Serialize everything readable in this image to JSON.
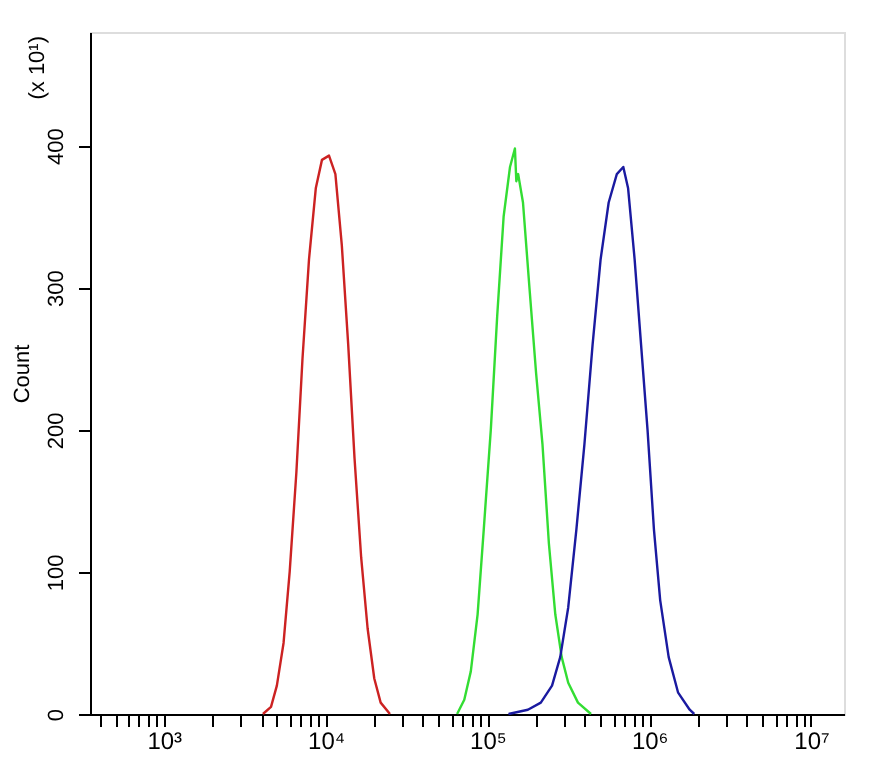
{
  "chart_data": {
    "type": "line",
    "ylabel": "Count",
    "annotations": [
      "(x 10¹)"
    ],
    "xlim": [
      350,
      16000000
    ],
    "ylim": [
      0,
      480
    ],
    "log": "x",
    "grid": false,
    "legend": false,
    "marker": "none",
    "line_style": "solid",
    "yticks": [
      0,
      100,
      200,
      300,
      400
    ],
    "xticks": [
      {
        "value": 400,
        "label": null
      },
      {
        "value": 500,
        "label": null
      },
      {
        "value": 600,
        "label": null
      },
      {
        "value": 700,
        "label": null
      },
      {
        "value": 800,
        "label": null
      },
      {
        "value": 900,
        "label": null
      },
      {
        "value": 1000,
        "label": "10³"
      },
      {
        "value": 2000,
        "label": null
      },
      {
        "value": 3000,
        "label": null
      },
      {
        "value": 4000,
        "label": null
      },
      {
        "value": 5000,
        "label": null
      },
      {
        "value": 6000,
        "label": null
      },
      {
        "value": 7000,
        "label": null
      },
      {
        "value": 8000,
        "label": null
      },
      {
        "value": 9000,
        "label": null
      },
      {
        "value": 10000,
        "label": "10⁴"
      },
      {
        "value": 20000,
        "label": null
      },
      {
        "value": 30000,
        "label": null
      },
      {
        "value": 40000,
        "label": null
      },
      {
        "value": 50000,
        "label": null
      },
      {
        "value": 60000,
        "label": null
      },
      {
        "value": 70000,
        "label": null
      },
      {
        "value": 80000,
        "label": null
      },
      {
        "value": 90000,
        "label": null
      },
      {
        "value": 100000,
        "label": "10⁵"
      },
      {
        "value": 200000,
        "label": null
      },
      {
        "value": 300000,
        "label": null
      },
      {
        "value": 400000,
        "label": null
      },
      {
        "value": 500000,
        "label": null
      },
      {
        "value": 600000,
        "label": null
      },
      {
        "value": 700000,
        "label": null
      },
      {
        "value": 800000,
        "label": null
      },
      {
        "value": 900000,
        "label": null
      },
      {
        "value": 1000000,
        "label": "10⁶"
      },
      {
        "value": 2000000,
        "label": null
      },
      {
        "value": 3000000,
        "label": null
      },
      {
        "value": 4000000,
        "label": null
      },
      {
        "value": 5000000,
        "label": null
      },
      {
        "value": 6000000,
        "label": null
      },
      {
        "value": 7000000,
        "label": null
      },
      {
        "value": 8000000,
        "label": null
      },
      {
        "value": 9000000,
        "label": null
      },
      {
        "value": 10000000,
        "label": "10⁷"
      }
    ],
    "series": [
      {
        "color": "#cc2222",
        "x": [
          4100,
          4600,
          5000,
          5500,
          6000,
          6600,
          7200,
          7900,
          8700,
          9500,
          10500,
          11500,
          12600,
          13800,
          15100,
          16600,
          18200,
          20000,
          21900,
          25000
        ],
        "values": [
          0,
          5,
          20,
          50,
          100,
          170,
          250,
          320,
          370,
          390,
          393,
          380,
          330,
          260,
          180,
          110,
          60,
          25,
          8,
          0
        ]
      },
      {
        "color": "#33dd33",
        "x": [
          65000,
          72000,
          79000,
          87000,
          95000,
          105000,
          115000,
          126000,
          138000,
          148000,
          151000,
          155000,
          166000,
          182000,
          200000,
          219000,
          240000,
          263000,
          288000,
          316000,
          363000,
          437000
        ],
        "values": [
          0,
          10,
          30,
          70,
          130,
          200,
          280,
          350,
          385,
          398,
          375,
          380,
          360,
          300,
          240,
          190,
          120,
          70,
          40,
          22,
          8,
          0
        ]
      },
      {
        "color": "#1a1aa0",
        "x": [
          135000,
          178000,
          214000,
          251000,
          282000,
          316000,
          355000,
          398000,
          447000,
          501000,
          562000,
          631000,
          692000,
          741000,
          813000,
          891000,
          977000,
          1070000,
          1170000,
          1320000,
          1510000,
          1780000,
          1900000
        ],
        "values": [
          0,
          3,
          8,
          20,
          40,
          75,
          130,
          190,
          260,
          320,
          360,
          380,
          385,
          370,
          320,
          260,
          200,
          130,
          80,
          40,
          15,
          3,
          0
        ]
      }
    ]
  }
}
